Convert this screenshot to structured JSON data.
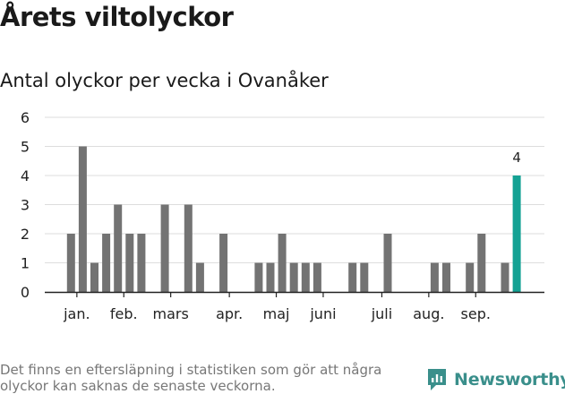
{
  "header": {
    "title": "Årets viltolyckor",
    "subtitle": "Antal olyckor per vecka i Ovanåker"
  },
  "footer": {
    "note": "Det finns en eftersläpning i statistiken som gör att några olyckor kan saknas de senaste veckorna.",
    "brand": "Newsworthy",
    "brand_icon": "newsworthy-logo-icon"
  },
  "colors": {
    "bar": "#737373",
    "highlight": "#14a294",
    "grid": "#dddddd",
    "axis": "#222222",
    "brand": "#3a8f8b"
  },
  "chart_data": {
    "type": "bar",
    "title": "Antal olyckor per vecka i Ovanåker",
    "xlabel": "",
    "ylabel": "",
    "ylim": [
      0,
      6
    ],
    "yticks": [
      0,
      1,
      2,
      3,
      4,
      5,
      6
    ],
    "grid": true,
    "x_unit": "vecka",
    "weeks": [
      1,
      2,
      3,
      4,
      5,
      6,
      7,
      8,
      9,
      10,
      11,
      12,
      13,
      14,
      15,
      16,
      17,
      18,
      19,
      20,
      21,
      22,
      23,
      24,
      25,
      26,
      27,
      28,
      29,
      30,
      31,
      32,
      33,
      34,
      35,
      36,
      37,
      38,
      39
    ],
    "values": [
      2,
      5,
      1,
      2,
      3,
      2,
      2,
      0,
      3,
      0,
      3,
      1,
      0,
      2,
      0,
      0,
      1,
      1,
      2,
      1,
      1,
      1,
      0,
      0,
      1,
      1,
      0,
      2,
      0,
      0,
      0,
      1,
      1,
      0,
      1,
      2,
      0,
      1,
      4
    ],
    "highlight_week": 39,
    "value_labels": [
      {
        "week": 39,
        "text": "4"
      }
    ],
    "month_labels": [
      {
        "label": "jan.",
        "week": 1.5
      },
      {
        "label": "feb.",
        "week": 5.5
      },
      {
        "label": "mars",
        "week": 9.5
      },
      {
        "label": "apr.",
        "week": 14.5
      },
      {
        "label": "maj",
        "week": 18.5
      },
      {
        "label": "juni",
        "week": 22.5
      },
      {
        "label": "juli",
        "week": 27.5
      },
      {
        "label": "aug.",
        "week": 31.5
      },
      {
        "label": "sep.",
        "week": 35.5
      }
    ]
  }
}
